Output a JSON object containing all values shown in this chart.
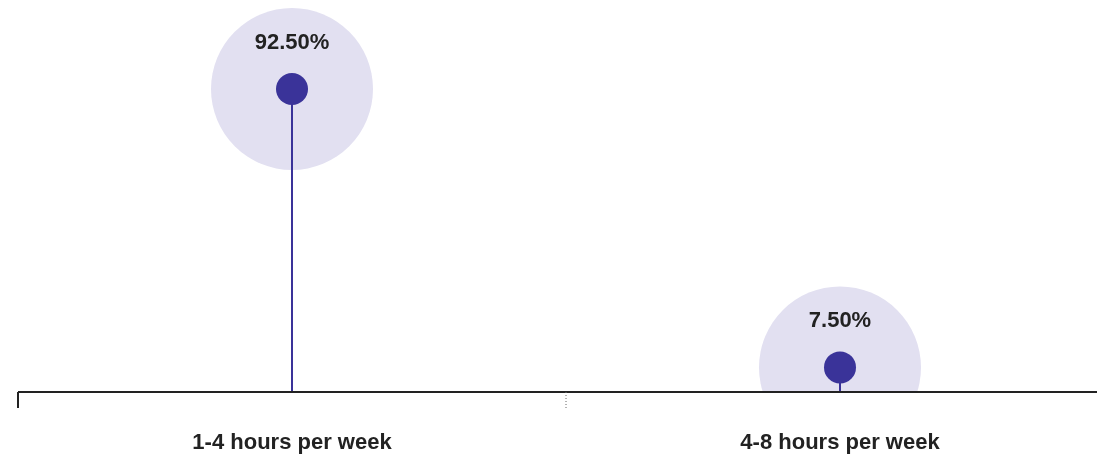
{
  "chart_data": {
    "type": "lollipop",
    "categories": [
      "1-4 hours per week",
      "4-8 hours per week"
    ],
    "values": [
      92.5,
      7.5
    ],
    "value_labels": [
      "92.50%",
      "7.50%"
    ],
    "color": "#3a3399"
  }
}
